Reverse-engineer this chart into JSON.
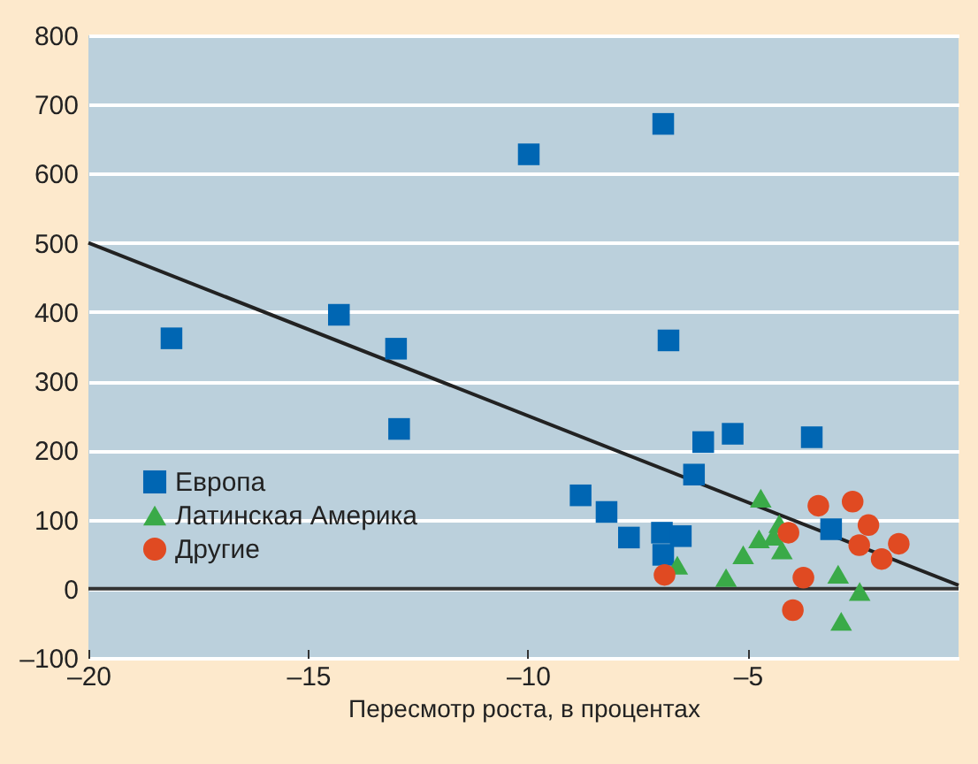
{
  "chart_data": {
    "type": "scatter",
    "xlabel": "Пересмотр роста, в процентах",
    "xlim": [
      -20,
      -0.2
    ],
    "xticks": [
      {
        "value": -20,
        "label": "–20"
      },
      {
        "value": -15,
        "label": "–15"
      },
      {
        "value": -10,
        "label": "–10"
      },
      {
        "value": -5,
        "label": "–5"
      }
    ],
    "ylim": [
      -100,
      800
    ],
    "yticks": [
      {
        "value": -100,
        "label": "–100"
      },
      0,
      100,
      200,
      300,
      400,
      500,
      600,
      700,
      800
    ],
    "grid": "y",
    "legend": "bottom left",
    "ref_lines": [
      {
        "axis": "y",
        "value": 0,
        "color": "#333333"
      }
    ],
    "series": [
      {
        "name": "Европа",
        "color": "#0066b3",
        "marker": "square",
        "x": [
          -18.11,
          -14.3,
          -13.0,
          -12.93,
          -9.98,
          -6.92,
          -6.8,
          -6.01,
          -5.34,
          -3.54,
          -6.22,
          -8.8,
          -8.21,
          -7.7,
          -6.95,
          -6.52,
          -6.92,
          -3.1
        ],
        "values": [
          362,
          396,
          347,
          231,
          628,
          672,
          359,
          212,
          224,
          219,
          165,
          135,
          111,
          74,
          81,
          76,
          49,
          86
        ]
      },
      {
        "name": "Латинская Америка",
        "color": "#3aaa48",
        "marker": "triangle",
        "x": [
          -6.6,
          -5.49,
          -5.1,
          -4.7,
          -4.74,
          -4.41,
          -4.28,
          -4.22,
          -2.94,
          -2.45,
          -2.87
        ],
        "values": [
          34,
          16,
          49,
          131,
          72,
          76,
          94,
          56,
          21,
          -4,
          -47
        ]
      },
      {
        "name": "Другие",
        "color": "#e04a22",
        "marker": "circle",
        "x": [
          -6.89,
          -4.07,
          -3.73,
          -3.97,
          -3.39,
          -2.61,
          -2.25,
          -2.46,
          -1.95,
          -1.56
        ],
        "values": [
          20,
          81,
          16,
          -31,
          120,
          126,
          92,
          63,
          43,
          65
        ]
      },
      {
        "type": "line",
        "color": "#222222",
        "marker": "none",
        "x": [
          -20,
          -0.2
        ],
        "values": [
          500,
          5
        ]
      }
    ]
  }
}
